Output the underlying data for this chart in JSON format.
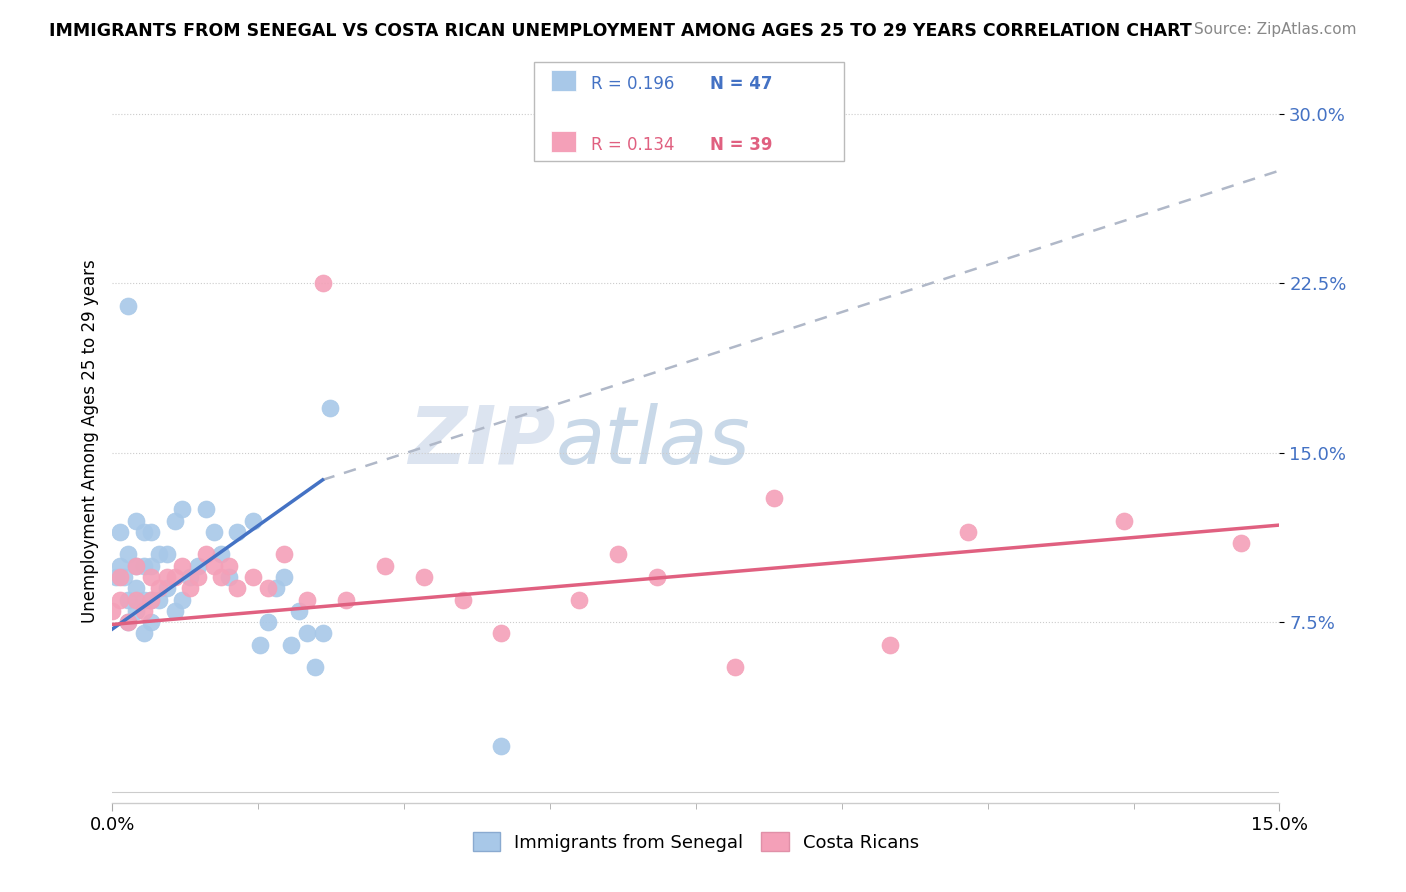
{
  "title": "IMMIGRANTS FROM SENEGAL VS COSTA RICAN UNEMPLOYMENT AMONG AGES 25 TO 29 YEARS CORRELATION CHART",
  "source": "Source: ZipAtlas.com",
  "ylabel": "Unemployment Among Ages 25 to 29 years",
  "xlim": [
    0.0,
    0.15
  ],
  "ylim": [
    -0.005,
    0.315
  ],
  "ytick_vals": [
    0.075,
    0.15,
    0.225,
    0.3
  ],
  "ytick_labels": [
    "7.5%",
    "15.0%",
    "22.5%",
    "30.0%"
  ],
  "blue_color": "#a8c8e8",
  "blue_line_color": "#4472c4",
  "pink_color": "#f4a0b8",
  "pink_line_color": "#e06080",
  "dashed_color": "#b0b8c8",
  "watermark_color": "#dce4f0",
  "senegal_x": [
    0.0005,
    0.001,
    0.001,
    0.0015,
    0.002,
    0.002,
    0.002,
    0.003,
    0.003,
    0.003,
    0.003,
    0.004,
    0.004,
    0.004,
    0.004,
    0.005,
    0.005,
    0.005,
    0.005,
    0.006,
    0.006,
    0.007,
    0.007,
    0.008,
    0.008,
    0.009,
    0.009,
    0.01,
    0.011,
    0.012,
    0.013,
    0.014,
    0.015,
    0.016,
    0.018,
    0.019,
    0.02,
    0.021,
    0.022,
    0.023,
    0.024,
    0.025,
    0.026,
    0.027,
    0.028,
    0.05,
    0.002
  ],
  "senegal_y": [
    0.095,
    0.1,
    0.115,
    0.095,
    0.085,
    0.105,
    0.075,
    0.08,
    0.09,
    0.1,
    0.12,
    0.07,
    0.085,
    0.1,
    0.115,
    0.075,
    0.085,
    0.1,
    0.115,
    0.085,
    0.105,
    0.09,
    0.105,
    0.08,
    0.12,
    0.085,
    0.125,
    0.095,
    0.1,
    0.125,
    0.115,
    0.105,
    0.095,
    0.115,
    0.12,
    0.065,
    0.075,
    0.09,
    0.095,
    0.065,
    0.08,
    0.07,
    0.055,
    0.07,
    0.17,
    0.02,
    0.215
  ],
  "costarica_x": [
    0.0,
    0.001,
    0.001,
    0.002,
    0.003,
    0.003,
    0.004,
    0.005,
    0.005,
    0.006,
    0.007,
    0.008,
    0.009,
    0.01,
    0.011,
    0.012,
    0.013,
    0.014,
    0.015,
    0.016,
    0.018,
    0.02,
    0.022,
    0.025,
    0.027,
    0.03,
    0.035,
    0.04,
    0.045,
    0.05,
    0.06,
    0.065,
    0.07,
    0.08,
    0.085,
    0.1,
    0.11,
    0.13,
    0.145
  ],
  "costarica_y": [
    0.08,
    0.085,
    0.095,
    0.075,
    0.085,
    0.1,
    0.08,
    0.085,
    0.095,
    0.09,
    0.095,
    0.095,
    0.1,
    0.09,
    0.095,
    0.105,
    0.1,
    0.095,
    0.1,
    0.09,
    0.095,
    0.09,
    0.105,
    0.085,
    0.225,
    0.085,
    0.1,
    0.095,
    0.085,
    0.07,
    0.085,
    0.105,
    0.095,
    0.055,
    0.13,
    0.065,
    0.115,
    0.12,
    0.11
  ],
  "sen_line_x0": 0.0,
  "sen_line_x1": 0.027,
  "sen_line_y0": 0.072,
  "sen_line_y1": 0.138,
  "dash_line_x0": 0.027,
  "dash_line_x1": 0.15,
  "dash_line_y0": 0.138,
  "dash_line_y1": 0.275,
  "cr_line_x0": 0.0,
  "cr_line_x1": 0.15,
  "cr_line_y0": 0.074,
  "cr_line_y1": 0.118
}
